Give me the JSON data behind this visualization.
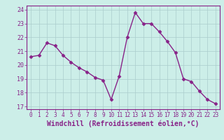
{
  "x": [
    0,
    1,
    2,
    3,
    4,
    5,
    6,
    7,
    8,
    9,
    10,
    11,
    12,
    13,
    14,
    15,
    16,
    17,
    18,
    19,
    20,
    21,
    22,
    23
  ],
  "y": [
    20.6,
    20.7,
    21.6,
    21.4,
    20.7,
    20.2,
    19.8,
    19.5,
    19.1,
    18.9,
    17.5,
    19.2,
    22.0,
    23.8,
    23.0,
    23.0,
    22.4,
    21.7,
    20.9,
    19.0,
    18.8,
    18.1,
    17.5,
    17.2
  ],
  "line_color": "#882288",
  "marker": "D",
  "marker_size": 2.5,
  "linewidth": 1.0,
  "xlabel": "Windchill (Refroidissement éolien,°C)",
  "xlim": [
    -0.5,
    23.5
  ],
  "ylim": [
    16.8,
    24.3
  ],
  "yticks": [
    17,
    18,
    19,
    20,
    21,
    22,
    23,
    24
  ],
  "xticks": [
    0,
    1,
    2,
    3,
    4,
    5,
    6,
    7,
    8,
    9,
    10,
    11,
    12,
    13,
    14,
    15,
    16,
    17,
    18,
    19,
    20,
    21,
    22,
    23
  ],
  "bg_color": "#cceee8",
  "grid_color": "#aacccc",
  "axis_label_color": "#882288",
  "tick_color": "#882288",
  "xlabel_fontsize": 7.0,
  "tick_fontsize": 6.0,
  "xtick_fontsize": 5.5
}
